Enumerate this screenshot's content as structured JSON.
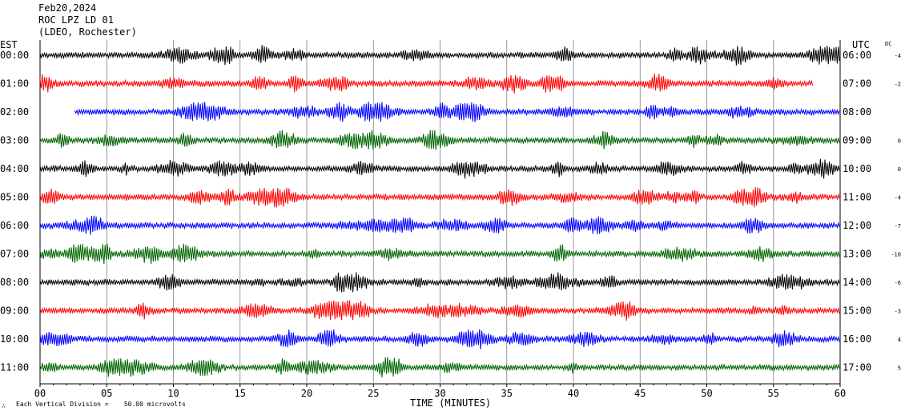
{
  "header": {
    "date": "Feb20,2024",
    "station": "ROC LPZ LD 01",
    "network": "(LDEO, Rochester)"
  },
  "labels": {
    "left_tz": "EST",
    "right_tz": "UTC",
    "dc": "DC"
  },
  "footer": {
    "scale_note": "Each Vertical Division =    50.00 microvolts",
    "mark": "∴"
  },
  "chart_data": {
    "type": "line",
    "subtype": "helicorder",
    "xlabel": "TIME (MINUTES)",
    "xlim": [
      0,
      60
    ],
    "x_ticks": [
      "00",
      "05",
      "10",
      "15",
      "20",
      "25",
      "30",
      "35",
      "40",
      "45",
      "50",
      "55",
      "60"
    ],
    "grid": true,
    "rows": [
      {
        "est": "00:00",
        "utc": "06:00",
        "dc": "-4",
        "color": "#000000",
        "start": 0,
        "end": 60
      },
      {
        "est": "01:00",
        "utc": "07:00",
        "dc": "-2",
        "color": "#ff0000",
        "start": 0,
        "end": 58
      },
      {
        "est": "02:00",
        "utc": "08:00",
        "dc": "",
        "color": "#0000ff",
        "start": 2.6,
        "end": 60
      },
      {
        "est": "03:00",
        "utc": "09:00",
        "dc": "0",
        "color": "#006400",
        "start": 0,
        "end": 60
      },
      {
        "est": "04:00",
        "utc": "10:00",
        "dc": "0",
        "color": "#000000",
        "start": 0,
        "end": 60
      },
      {
        "est": "05:00",
        "utc": "11:00",
        "dc": "-4",
        "color": "#ff0000",
        "start": 0,
        "end": 60
      },
      {
        "est": "06:00",
        "utc": "12:00",
        "dc": "-7",
        "color": "#0000ff",
        "start": 0,
        "end": 60
      },
      {
        "est": "07:00",
        "utc": "13:00",
        "dc": "-10",
        "color": "#006400",
        "start": 0,
        "end": 60
      },
      {
        "est": "08:00",
        "utc": "14:00",
        "dc": "-6",
        "color": "#000000",
        "start": 0,
        "end": 60
      },
      {
        "est": "09:00",
        "utc": "15:00",
        "dc": "-3",
        "color": "#ff0000",
        "start": 0,
        "end": 60
      },
      {
        "est": "10:00",
        "utc": "16:00",
        "dc": "4",
        "color": "#0000ff",
        "start": 0,
        "end": 60
      },
      {
        "est": "11:00",
        "utc": "17:00",
        "dc": "5",
        "color": "#006400",
        "start": 0,
        "end": 60
      }
    ]
  }
}
